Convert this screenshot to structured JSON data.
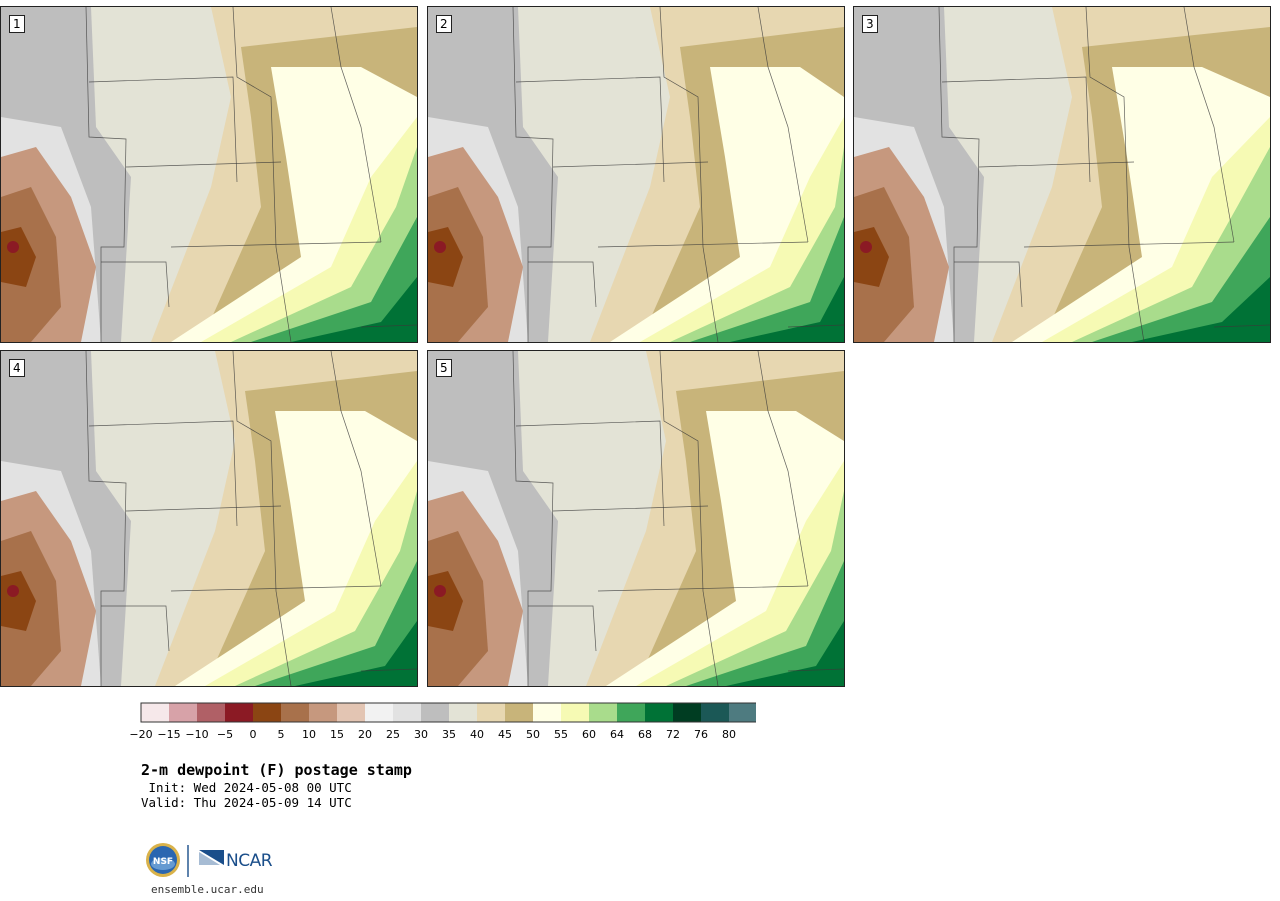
{
  "panels": [
    {
      "label": "1"
    },
    {
      "label": "2"
    },
    {
      "label": "3"
    },
    {
      "label": "4"
    },
    {
      "label": "5"
    }
  ],
  "colorbar": {
    "colors": [
      "#f6e8ea",
      "#d7a2a8",
      "#b06066",
      "#8b1a24",
      "#8b4513",
      "#a8714b",
      "#c6987e",
      "#e3c5b3",
      "#f2f2f2",
      "#e2e2e2",
      "#bebebe",
      "#e3e3d6",
      "#e7d7b1",
      "#c8b47a",
      "#ffffe6",
      "#f6fab4",
      "#a9dc8c",
      "#3fa65a",
      "#007236",
      "#003d22",
      "#1b5856",
      "#4e7b80"
    ],
    "ticks": [
      "−20",
      "−15",
      "−10",
      "−5",
      "0",
      "5",
      "10",
      "15",
      "20",
      "25",
      "30",
      "35",
      "40",
      "45",
      "50",
      "55",
      "60",
      "64",
      "68",
      "72",
      "76",
      "80"
    ]
  },
  "title": "2-m dewpoint (F) postage stamp",
  "init": " Init: Wed 2024-05-08 00 UTC",
  "valid": "Valid: Thu 2024-05-09 14 UTC",
  "logos": {
    "nsf": "NSF",
    "ncar": "NCAR"
  },
  "url": "ensemble.ucar.edu"
}
